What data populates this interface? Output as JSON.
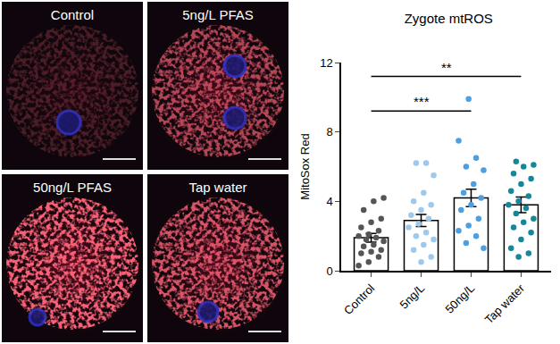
{
  "panels": [
    {
      "label": "Control"
    },
    {
      "label": "5ng/L PFAS"
    },
    {
      "label": "50ng/L PFAS"
    },
    {
      "label": "Tap water"
    }
  ],
  "chart_data": {
    "type": "bar",
    "title": "Zygote mtROS",
    "y_label": "MitoSox Red",
    "categories": [
      "Control",
      "5ng/L",
      "50ng/L",
      "Tap water"
    ],
    "values": [
      1.9,
      2.9,
      4.2,
      3.8
    ],
    "errors": [
      0.25,
      0.35,
      0.5,
      0.45
    ],
    "points": [
      [
        0.3,
        0.5,
        0.8,
        1.0,
        1.1,
        1.2,
        1.4,
        1.5,
        1.7,
        1.8,
        1.9,
        2.0,
        2.1,
        2.3,
        2.5,
        2.8,
        3.0,
        3.5,
        4.0,
        4.2
      ],
      [
        0.5,
        0.8,
        1.2,
        1.5,
        1.8,
        2.0,
        2.2,
        2.5,
        2.7,
        3.0,
        3.2,
        3.5,
        3.8,
        4.0,
        4.5,
        5.5,
        6.2,
        6.2
      ],
      [
        1.3,
        1.6,
        2.0,
        2.3,
        2.6,
        3.0,
        3.5,
        3.8,
        4.2,
        4.5,
        5.0,
        5.8,
        6.0,
        6.5,
        7.5,
        9.9
      ],
      [
        0.8,
        1.0,
        1.3,
        1.8,
        2.2,
        2.5,
        2.8,
        3.0,
        3.3,
        3.6,
        3.8,
        4.0,
        4.3,
        4.6,
        5.0,
        5.3,
        5.6,
        6.0,
        6.1,
        6.3
      ]
    ],
    "colors": [
      "#555555",
      "#9ec9ec",
      "#4d9fe0",
      "#16879a"
    ],
    "color": "#ffffff",
    "ylim": [
      0,
      12
    ],
    "yticks": [
      0,
      4,
      8,
      12
    ],
    "grid": false,
    "comparisons": [
      {
        "groups": [
          "Control",
          "50ng/L"
        ],
        "label": "***"
      },
      {
        "groups": [
          "Control",
          "Tap water"
        ],
        "label": "**"
      }
    ]
  }
}
